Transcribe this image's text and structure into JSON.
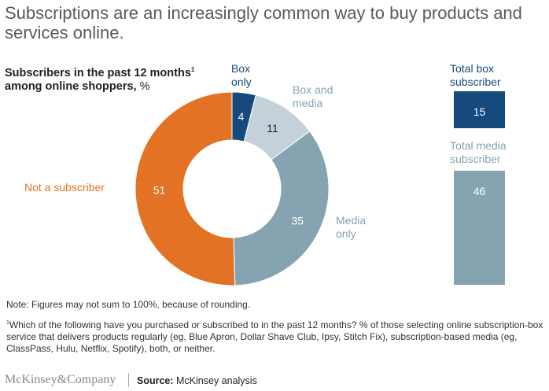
{
  "title": "Subscriptions are an increasingly common way to buy products and services online.",
  "subtitle": {
    "bold": "Subscribers in the past 12 months",
    "sup": "1",
    "bold2": " among online shoppers,",
    "unit": " %"
  },
  "chart_data": [
    {
      "type": "pie",
      "variant": "donut",
      "slices": [
        {
          "label": "Box only",
          "value": 4,
          "color": "#174a7c"
        },
        {
          "label": "Box and media",
          "value": 11,
          "color": "#c4d1d8"
        },
        {
          "label": "Media only",
          "value": 35,
          "color": "#86a3b2"
        },
        {
          "label": "Not a subscriber",
          "value": 51,
          "color": "#e37225"
        }
      ]
    },
    {
      "type": "bar",
      "categories": [
        "Total box subscriber",
        "Total media subscriber"
      ],
      "values": [
        15,
        46
      ],
      "colors": [
        "#174a7c",
        "#86a3b2"
      ]
    }
  ],
  "note": "Note: Figures may not sum to 100%, because of rounding.",
  "footnote_mark": "1",
  "footnote": "Which of the following have you purchased or subscribed to in the past 12 months? % of those selecting online subscription-box service that delivers products regularly (eg, Blue Apron, Dollar Shave Club, Ipsy, Stitch Fix), subscription-based media (eg, ClassPass, Hulu, Netflix, Spotify), both, or neither.",
  "brand": "McKinsey&Company",
  "source_label": "Source:",
  "source": " McKinsey analysis"
}
